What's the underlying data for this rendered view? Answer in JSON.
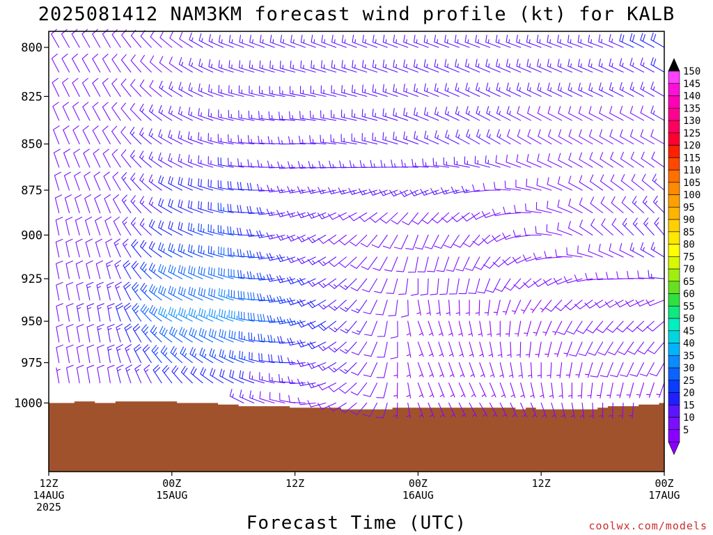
{
  "chart_data": {
    "type": "wind-barb-time-height",
    "title": "2025081412 NAM3KM forecast wind profile (kt) for KALB",
    "xlabel": "Forecast Time (UTC)",
    "credit": "coolwx.com/models",
    "units": "kt",
    "y_axis": {
      "label": "",
      "scale": "log",
      "inverted": true,
      "ticks": [
        800,
        825,
        850,
        875,
        900,
        925,
        950,
        975,
        1000
      ],
      "range": [
        792,
        1044
      ]
    },
    "x_axis": {
      "range_hours": [
        0,
        60
      ],
      "ticks": [
        {
          "hour": 0,
          "line1": "12Z",
          "line2": "14AUG",
          "line3": "2025"
        },
        {
          "hour": 12,
          "line1": "00Z",
          "line2": "15AUG",
          "line3": ""
        },
        {
          "hour": 24,
          "line1": "12Z",
          "line2": "",
          "line3": ""
        },
        {
          "hour": 36,
          "line1": "00Z",
          "line2": "16AUG",
          "line3": ""
        },
        {
          "hour": 48,
          "line1": "12Z",
          "line2": "",
          "line3": ""
        },
        {
          "hour": 60,
          "line1": "00Z",
          "line2": "17AUG",
          "line3": ""
        }
      ]
    },
    "time_step_hours": 1,
    "levels_hpa": [
      800,
      812.5,
      825,
      837.5,
      850,
      862.5,
      875,
      887.5,
      900,
      912.5,
      925,
      937.5,
      950,
      962.5,
      975,
      987.5,
      1000
    ],
    "surface_pressure_hpa": [
      1000,
      1000,
      1000,
      999,
      999,
      1000,
      1000,
      999,
      999,
      999,
      999,
      999,
      999,
      1000,
      1000,
      1000,
      1000,
      1001,
      1001,
      1002,
      1002,
      1002,
      1002,
      1002,
      1003,
      1003,
      1003,
      1003,
      1003,
      1004,
      1004,
      1004,
      1004,
      1004,
      1003,
      1003,
      1003,
      1003,
      1003,
      1003,
      1003,
      1003,
      1003,
      1003,
      1003,
      1003,
      1004,
      1003,
      1004,
      1004,
      1004,
      1004,
      1004,
      1004,
      1003,
      1002,
      1002,
      1002,
      1001,
      1001,
      1000
    ],
    "wind_speed_keyframes_kt": {
      "hours": [
        0,
        6,
        12,
        18,
        24,
        30,
        36,
        42,
        48,
        54,
        60
      ],
      "levels": [
        800,
        850,
        900,
        950,
        1000
      ],
      "speed": [
        [
          10,
          10,
          10,
          15,
          15,
          15,
          15,
          15,
          15,
          15,
          20
        ],
        [
          10,
          10,
          15,
          15,
          15,
          15,
          15,
          15,
          10,
          10,
          10
        ],
        [
          10,
          10,
          20,
          25,
          15,
          10,
          10,
          10,
          10,
          10,
          15
        ],
        [
          10,
          15,
          35,
          35,
          25,
          15,
          5,
          5,
          5,
          10,
          10
        ],
        [
          5,
          10,
          15,
          15,
          10,
          10,
          5,
          5,
          5,
          5,
          5
        ]
      ]
    },
    "wind_direction_keyframes_deg": {
      "hours": [
        0,
        6,
        12,
        18,
        24,
        30,
        36,
        42,
        48,
        54,
        60
      ],
      "levels": [
        800,
        850,
        900,
        950,
        1000
      ],
      "direction": [
        [
          330,
          330,
          310,
          290,
          290,
          290,
          290,
          290,
          290,
          290,
          300
        ],
        [
          340,
          330,
          300,
          280,
          270,
          280,
          290,
          300,
          300,
          300,
          300
        ],
        [
          350,
          340,
          300,
          280,
          250,
          230,
          200,
          220,
          270,
          310,
          320
        ],
        [
          350,
          350,
          300,
          290,
          260,
          220,
          160,
          170,
          200,
          220,
          230
        ],
        [
          350,
          350,
          330,
          300,
          280,
          230,
          160,
          150,
          160,
          180,
          190
        ]
      ]
    },
    "colorbar": {
      "labels": [
        5,
        10,
        15,
        20,
        25,
        30,
        35,
        40,
        45,
        50,
        55,
        60,
        65,
        70,
        75,
        80,
        85,
        90,
        95,
        100,
        105,
        110,
        115,
        120,
        125,
        130,
        135,
        140,
        145,
        150
      ],
      "colors": [
        "#8a00ff",
        "#7a10ff",
        "#5a16ff",
        "#2020ff",
        "#0a3cff",
        "#0a64ff",
        "#0a8cff",
        "#00b4ff",
        "#00d6e0",
        "#00f0c0",
        "#10e880",
        "#30e040",
        "#66e020",
        "#a0ee10",
        "#d8f800",
        "#ffff00",
        "#ffe800",
        "#ffd000",
        "#ffb400",
        "#ffa000",
        "#ff8a00",
        "#ff7000",
        "#ff4800",
        "#ff2000",
        "#ff0030",
        "#ff0060",
        "#ff0090",
        "#ff00b8",
        "#ff10d8",
        "#ff40ff"
      ],
      "under_color": "#8a00ff",
      "over_color": "#000000"
    },
    "ground_color": "#a0522d"
  }
}
